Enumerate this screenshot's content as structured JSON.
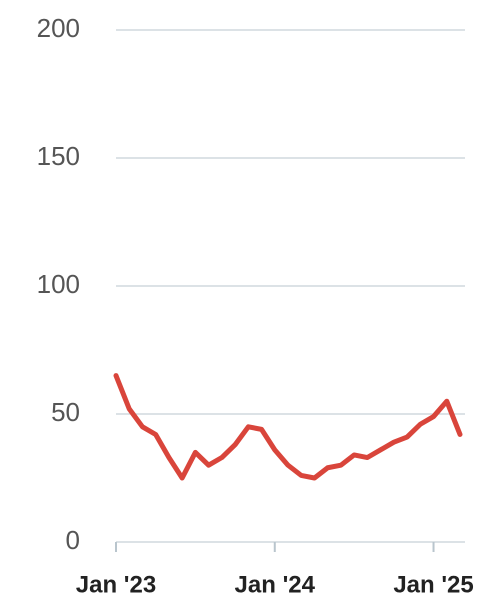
{
  "chart_data": {
    "type": "line",
    "x": [
      "2023-01",
      "2023-02",
      "2023-03",
      "2023-04",
      "2023-05",
      "2023-06",
      "2023-07",
      "2023-08",
      "2023-09",
      "2023-10",
      "2023-11",
      "2023-12",
      "2024-01",
      "2024-02",
      "2024-03",
      "2024-04",
      "2024-05",
      "2024-06",
      "2024-07",
      "2024-08",
      "2024-09",
      "2024-10",
      "2024-11",
      "2024-12",
      "2025-01",
      "2025-02",
      "2025-03"
    ],
    "series": [
      {
        "color": "#d9453b",
        "values": [
          65,
          52,
          45,
          42,
          33,
          25,
          35,
          30,
          33,
          38,
          45,
          44,
          36,
          30,
          26,
          25,
          29,
          30,
          34,
          33,
          36,
          39,
          41,
          46,
          49,
          55,
          42
        ]
      }
    ],
    "xlim": [
      "2023-01",
      "2025-03"
    ],
    "xticks": [
      {
        "value": "2023-01",
        "label": "Jan '23"
      },
      {
        "value": "2024-01",
        "label": "Jan '24"
      },
      {
        "value": "2025-01",
        "label": "Jan '25"
      }
    ],
    "ylim": [
      0,
      200
    ],
    "yticks": [
      0,
      50,
      100,
      150,
      200
    ],
    "grid": true
  }
}
